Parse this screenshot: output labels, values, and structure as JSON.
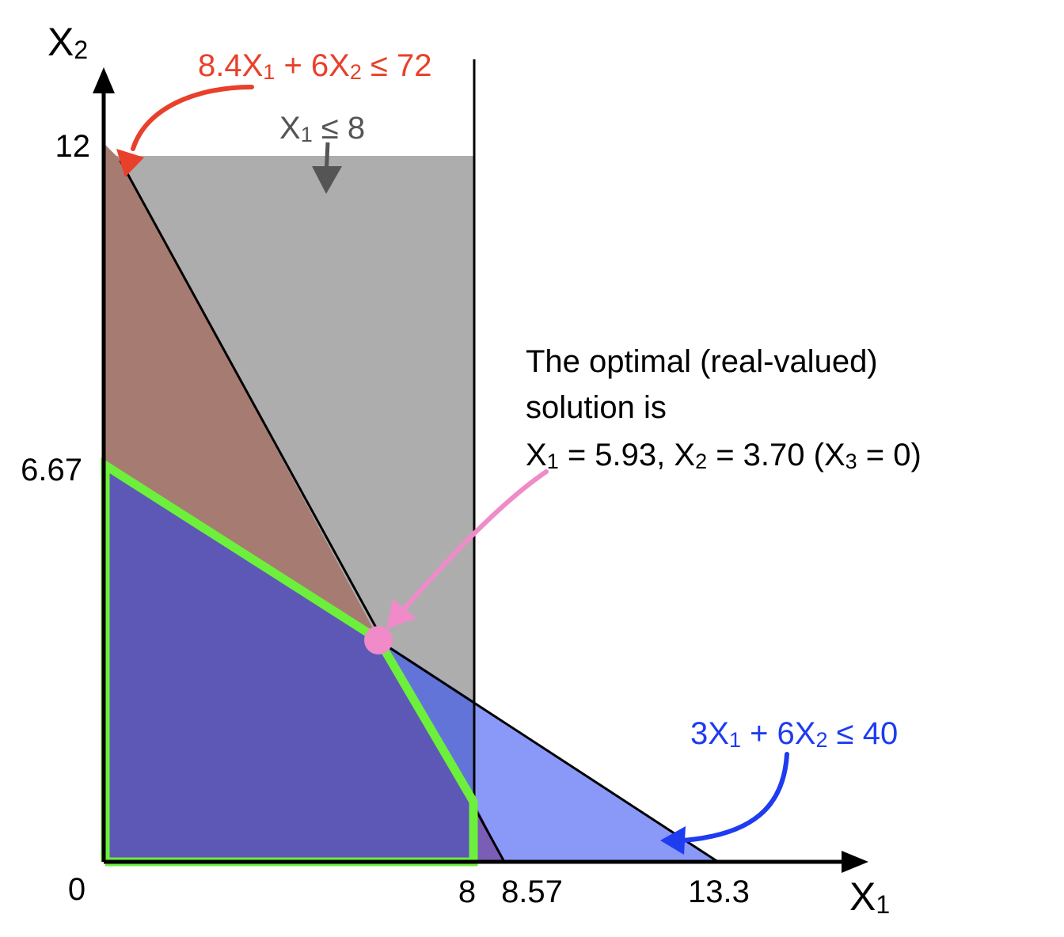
{
  "axes": {
    "y_label": {
      "main": "X",
      "sub": "2"
    },
    "x_label": {
      "main": "X",
      "sub": "1"
    },
    "y_ticks": [
      "12",
      "6.67"
    ],
    "origin": "0",
    "x_ticks": [
      "8",
      "8.57",
      "13.3"
    ]
  },
  "constraints": {
    "red": {
      "parts": [
        [
          "8.4X",
          "1",
          " + 6X",
          "2",
          " ≤ 72"
        ]
      ],
      "color": "#e8402a"
    },
    "gray": {
      "parts": [
        [
          "X",
          "1",
          " ≤ 8"
        ]
      ],
      "color": "#555555"
    },
    "blue": {
      "parts": [
        [
          "3X",
          "1",
          " + 6X",
          "2",
          " ≤ 40"
        ]
      ],
      "color": "#1e3cf0"
    }
  },
  "annotation": {
    "line1": "The optimal (real-valued)",
    "line2": "solution is",
    "line3_parts": [
      "X",
      "1",
      " = 5.93, X",
      "2",
      " = 3.70 (X",
      "3",
      " = 0)"
    ],
    "color": "#000000",
    "arrow_color": "#f08ac8"
  },
  "colors": {
    "gray_region": "#adadad",
    "brown_region": "#a67c72",
    "purple_region": "#5d58b5",
    "mid_blue_region": "#6374d8",
    "light_blue_region": "#8a99f7",
    "green_boundary": "#6cf03c",
    "optimum_point": "#f08ac8"
  }
}
